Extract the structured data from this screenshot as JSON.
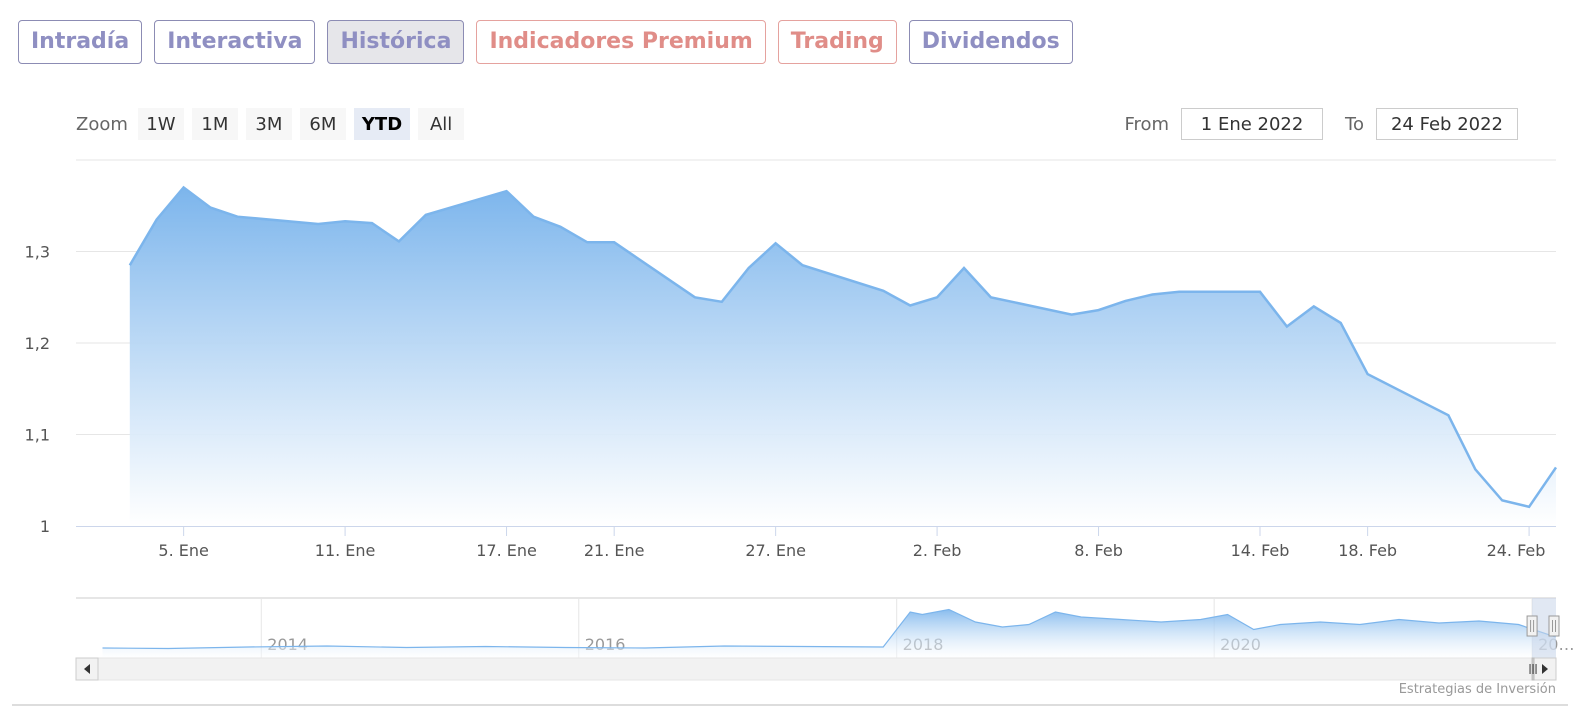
{
  "tabs": [
    {
      "label": "Intradía",
      "style": "blue"
    },
    {
      "label": "Interactiva",
      "style": "blue"
    },
    {
      "label": "Histórica",
      "style": "blue",
      "active": true
    },
    {
      "label": "Indicadores Premium",
      "style": "red"
    },
    {
      "label": "Trading",
      "style": "red"
    },
    {
      "label": "Dividendos",
      "style": "blue"
    }
  ],
  "zoom": {
    "label": "Zoom",
    "buttons": [
      "1W",
      "1M",
      "3M",
      "6M",
      "YTD",
      "All"
    ],
    "selected": "YTD"
  },
  "range": {
    "from_label": "From",
    "from_value": "1 Ene 2022",
    "to_label": "To",
    "to_value": "24 Feb 2022"
  },
  "credits": "Estrategias de Inversión",
  "colors": {
    "series": "#7cb5ec",
    "fill_top": "#7cb5ec",
    "fill_bottom": "#ffffff",
    "grid": "#e6e6e6",
    "navigator_mask": "#c9d6ea"
  },
  "chart_data": {
    "type": "area",
    "series": [
      {
        "x": [
          "2022-01-03",
          "2022-01-04",
          "2022-01-05",
          "2022-01-06",
          "2022-01-07",
          "2022-01-10",
          "2022-01-11",
          "2022-01-12",
          "2022-01-13",
          "2022-01-14",
          "2022-01-17",
          "2022-01-18",
          "2022-01-19",
          "2022-01-20",
          "2022-01-21",
          "2022-01-24",
          "2022-01-25",
          "2022-01-26",
          "2022-01-27",
          "2022-01-28",
          "2022-01-31",
          "2022-02-01",
          "2022-02-02",
          "2022-02-03",
          "2022-02-04",
          "2022-02-07",
          "2022-02-08",
          "2022-02-09",
          "2022-02-10",
          "2022-02-11",
          "2022-02-14",
          "2022-02-15",
          "2022-02-16",
          "2022-02-17",
          "2022-02-18",
          "2022-02-21",
          "2022-02-22",
          "2022-02-23",
          "2022-02-24",
          "2022-02-25"
        ],
        "values": [
          1.285,
          1.335,
          1.37,
          1.348,
          1.338,
          1.33,
          1.333,
          1.331,
          1.311,
          1.34,
          1.366,
          1.338,
          1.327,
          1.31,
          1.31,
          1.25,
          1.245,
          1.282,
          1.309,
          1.285,
          1.257,
          1.241,
          1.25,
          1.282,
          1.25,
          1.231,
          1.236,
          1.246,
          1.253,
          1.256,
          1.256,
          1.218,
          1.24,
          1.222,
          1.166,
          1.121,
          1.062,
          1.028,
          1.021,
          1.064
        ]
      }
    ],
    "x_tick_labels": [
      "5. Ene",
      "11. Ene",
      "17. Ene",
      "21. Ene",
      "27. Ene",
      "2. Feb",
      "8. Feb",
      "14. Feb",
      "18. Feb",
      "24. Feb"
    ],
    "y_tick_labels": [
      "1",
      "1,1",
      "1,2",
      "1,3"
    ],
    "ylim": [
      1.0,
      1.4
    ],
    "xlim": [
      "2022-01-01",
      "2022-02-25"
    ],
    "grid": true,
    "navigator": {
      "x_tick_labels": [
        "2014",
        "2016",
        "2018",
        "2020",
        "20…"
      ],
      "xlim": [
        "2012-11-01",
        "2022-02-25"
      ],
      "selected_range": [
        "2022-01-01",
        "2022-02-25"
      ],
      "x": [
        "2013-01-01",
        "2013-06-01",
        "2013-12-01",
        "2014-06-01",
        "2014-12-01",
        "2015-06-01",
        "2015-12-01",
        "2016-06-01",
        "2016-12-01",
        "2017-06-01",
        "2017-12-01",
        "2018-02-01",
        "2018-03-01",
        "2018-05-01",
        "2018-07-01",
        "2018-09-01",
        "2018-11-01",
        "2019-01-01",
        "2019-03-01",
        "2019-06-01",
        "2019-09-01",
        "2019-12-01",
        "2020-02-01",
        "2020-04-01",
        "2020-06-01",
        "2020-09-01",
        "2020-12-01",
        "2021-03-01",
        "2021-06-01",
        "2021-09-01",
        "2021-12-01",
        "2022-02-24"
      ],
      "values": [
        0.08,
        0.07,
        0.1,
        0.12,
        0.09,
        0.11,
        0.09,
        0.08,
        0.12,
        0.11,
        0.1,
        0.8,
        0.75,
        0.85,
        0.6,
        0.5,
        0.55,
        0.8,
        0.7,
        0.65,
        0.6,
        0.65,
        0.75,
        0.45,
        0.55,
        0.6,
        0.55,
        0.65,
        0.58,
        0.62,
        0.55,
        0.3
      ]
    }
  }
}
